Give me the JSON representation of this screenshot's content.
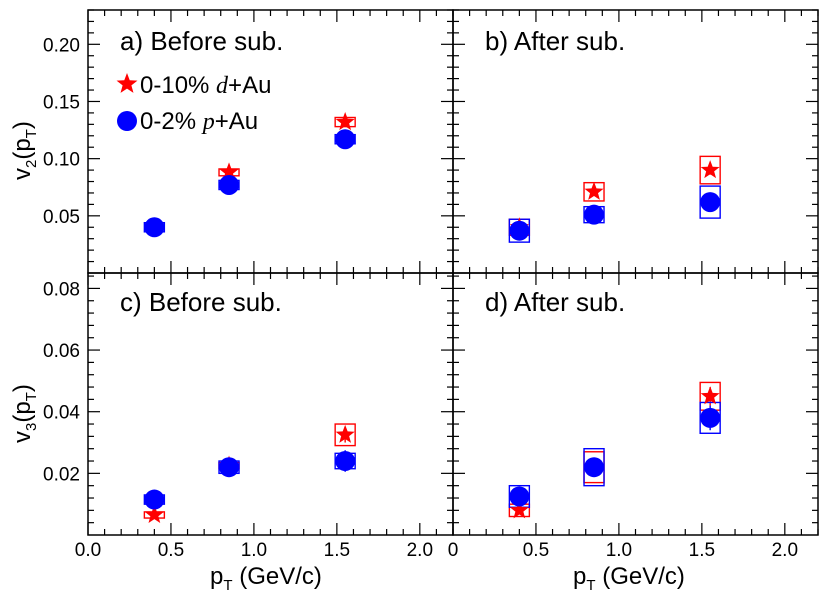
{
  "colors": {
    "dAu": "#ff0000",
    "pAu": "#0000ff",
    "axes": "#000000"
  },
  "legend": {
    "dAu": {
      "prefix": "0-10%",
      "system": "d",
      "suffix": "+Au",
      "marker": "star"
    },
    "pAu": {
      "prefix": "0-2%",
      "system": "p",
      "suffix": "+Au",
      "marker": "circle"
    }
  },
  "axes": {
    "xlabel": {
      "main": "p",
      "sub": "T",
      "rest": " (GeV/c)"
    },
    "v2_label": {
      "main": "v",
      "sub1": "2",
      "mid": "(p",
      "sub2": "T",
      "end": ")"
    },
    "v3_label": {
      "main": "v",
      "sub1": "3",
      "mid": "(p",
      "sub2": "T",
      "end": ")"
    },
    "x_ticks": [
      "0.0",
      "0.5",
      "1.0",
      "1.5",
      "2.0"
    ],
    "x_ticks_right": [
      "0",
      "0.5",
      "1.0",
      "1.5",
      "2.0"
    ],
    "v2_ticks": [
      "0.05",
      "0.10",
      "0.15",
      "0.20"
    ],
    "v3_ticks": [
      "0.02",
      "0.04",
      "0.06",
      "0.08"
    ]
  },
  "chart_data": [
    {
      "type": "scatter",
      "panel": "a",
      "label": "a) Before sub.",
      "xlabel": "pT (GeV/c)",
      "ylabel": "v2(pT)",
      "xlim": [
        0.0,
        2.2
      ],
      "ylim": [
        0.0,
        0.23
      ],
      "series": [
        {
          "name": "0-10% d+Au",
          "x": [
            0.85,
            1.55
          ],
          "y": [
            0.088,
            0.132
          ],
          "syst": [
            0.003,
            0.004
          ],
          "stat": [
            0.001,
            0.002
          ]
        },
        {
          "name": "0-2% p+Au",
          "x": [
            0.4,
            0.85,
            1.55
          ],
          "y": [
            0.04,
            0.077,
            0.117
          ],
          "syst": [
            0.004,
            0.004,
            0.004
          ],
          "stat": [
            0.001,
            0.001,
            0.002
          ]
        }
      ]
    },
    {
      "type": "scatter",
      "panel": "b",
      "label": "b) After sub.",
      "xlabel": "pT (GeV/c)",
      "ylabel": "v2(pT)",
      "xlim": [
        0.0,
        2.2
      ],
      "ylim": [
        0.0,
        0.23
      ],
      "series": [
        {
          "name": "0-10% d+Au",
          "x": [
            0.4,
            0.85,
            1.55
          ],
          "y": [
            0.04,
            0.071,
            0.09
          ],
          "syst": [
            0.007,
            0.008,
            0.012
          ],
          "stat": [
            0.002,
            0.003,
            0.004
          ]
        },
        {
          "name": "0-2% p+Au",
          "x": [
            0.4,
            0.85,
            1.55
          ],
          "y": [
            0.037,
            0.051,
            0.062
          ],
          "syst": [
            0.01,
            0.007,
            0.014
          ],
          "stat": [
            0.002,
            0.002,
            0.003
          ]
        }
      ]
    },
    {
      "type": "scatter",
      "panel": "c",
      "label": "c) Before sub.",
      "xlabel": "pT (GeV/c)",
      "ylabel": "v3(pT)",
      "xlim": [
        0.0,
        2.2
      ],
      "ylim": [
        0.0,
        0.085
      ],
      "series": [
        {
          "name": "0-10% d+Au",
          "x": [
            0.4,
            0.85,
            1.55
          ],
          "y": [
            0.0065,
            0.0225,
            0.0325
          ],
          "syst": [
            0.001,
            0.001,
            0.0035
          ],
          "stat": [
            0.0005,
            0.001,
            0.0025
          ]
        },
        {
          "name": "0-2% p+Au",
          "x": [
            0.4,
            0.85,
            1.55
          ],
          "y": [
            0.0115,
            0.022,
            0.024
          ],
          "syst": [
            0.0015,
            0.002,
            0.0025
          ],
          "stat": [
            0.001,
            0.001,
            0.0035
          ]
        }
      ]
    },
    {
      "type": "scatter",
      "panel": "d",
      "label": "d) After sub.",
      "xlabel": "pT (GeV/c)",
      "ylabel": "v3(pT)",
      "xlim": [
        0.0,
        2.2
      ],
      "ylim": [
        0.0,
        0.085
      ],
      "series": [
        {
          "name": "0-10% d+Au",
          "x": [
            0.4,
            0.85,
            1.55
          ],
          "y": [
            0.008,
            0.022,
            0.045
          ],
          "syst": [
            0.002,
            0.005,
            0.0045
          ],
          "stat": [
            0.001,
            0.003,
            0.003
          ]
        },
        {
          "name": "0-2% p+Au",
          "x": [
            0.4,
            0.85,
            1.55
          ],
          "y": [
            0.0125,
            0.022,
            0.038
          ],
          "syst": [
            0.0035,
            0.006,
            0.005
          ],
          "stat": [
            0.002,
            0.003,
            0.004
          ]
        }
      ]
    }
  ]
}
